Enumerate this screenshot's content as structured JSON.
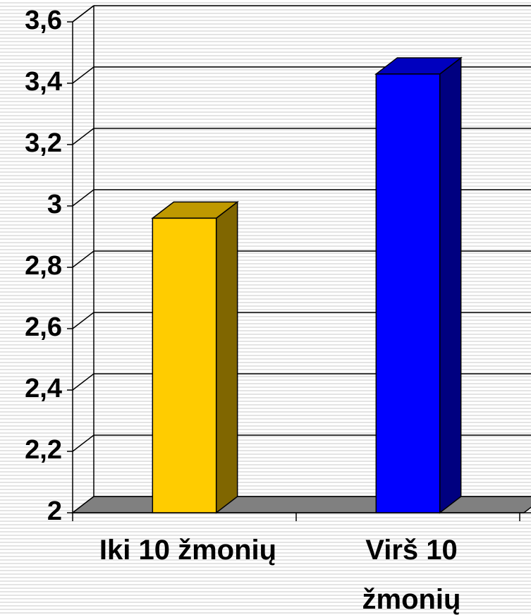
{
  "chart_data": {
    "type": "bar",
    "categories": [
      "Iki 10 žmonių",
      "Virš 10 žmonių"
    ],
    "values": [
      2.96,
      3.43
    ],
    "colors": [
      "#ffcc00",
      "#0000ff"
    ],
    "ylim": [
      2,
      3.6
    ],
    "yticks": [
      2,
      {
        "value": 2.2,
        "label": "2,2"
      },
      {
        "value": 2.4,
        "label": "2,4"
      },
      {
        "value": 2.6,
        "label": "2,6"
      },
      {
        "value": 2.8,
        "label": "2,8"
      },
      3,
      {
        "value": 3.2,
        "label": "3,2"
      },
      {
        "value": 3.4,
        "label": "3,4"
      },
      {
        "value": 3.6,
        "label": "3,6"
      }
    ],
    "grid": true
  }
}
